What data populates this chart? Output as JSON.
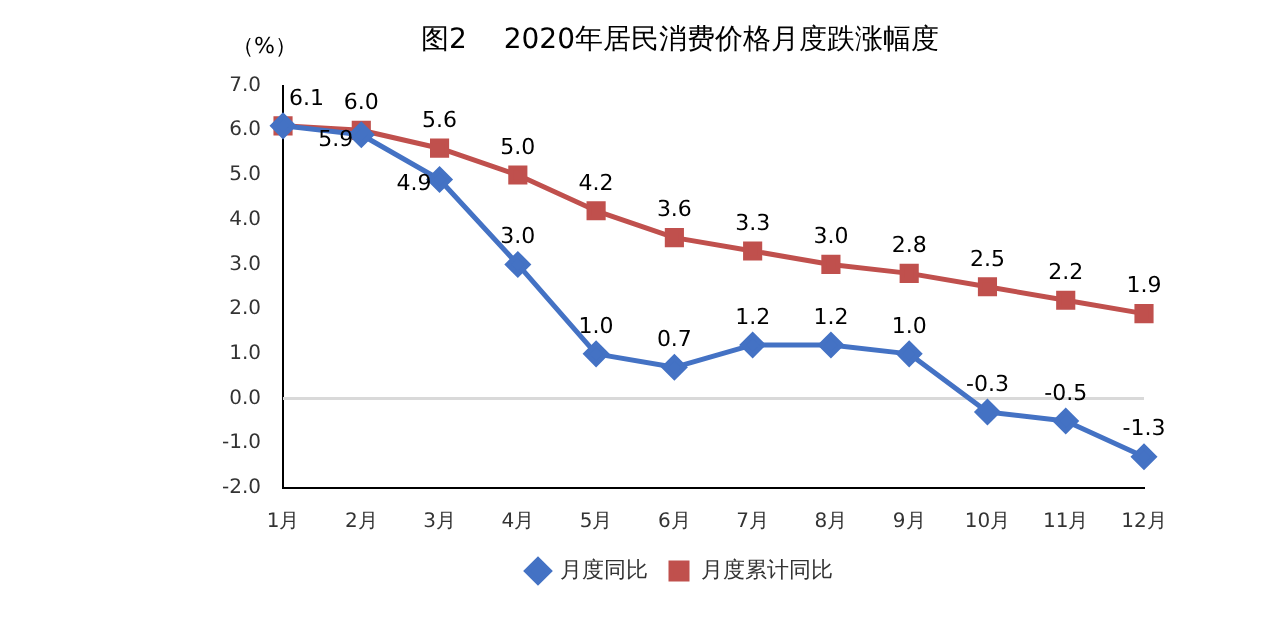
{
  "chart_data": {
    "type": "line",
    "title": "图2　 2020年居民消费价格月度跌涨幅度",
    "ylabel": "（%）",
    "categories": [
      "1月",
      "2月",
      "3月",
      "4月",
      "5月",
      "6月",
      "7月",
      "8月",
      "9月",
      "10月",
      "11月",
      "12月"
    ],
    "series": [
      {
        "name": "月度同比",
        "color": "#4472c4",
        "marker": "diamond",
        "values": [
          6.1,
          5.9,
          4.9,
          3.0,
          1.0,
          0.7,
          1.2,
          1.2,
          1.0,
          -0.3,
          -0.5,
          -1.3
        ],
        "value_labels": [
          null,
          "5.9",
          "4.9",
          "3.0",
          "1.0",
          "0.7",
          "1.2",
          "1.2",
          "1.0",
          "-0.3",
          "-0.5",
          "-1.3"
        ]
      },
      {
        "name": "月度累计同比",
        "color": "#c0504d",
        "marker": "square",
        "values": [
          6.1,
          6.0,
          5.6,
          5.0,
          4.2,
          3.6,
          3.3,
          3.0,
          2.8,
          2.5,
          2.2,
          1.9
        ],
        "value_labels": [
          "6.1",
          "6.0",
          "5.6",
          "5.0",
          "4.2",
          "3.6",
          "3.3",
          "3.0",
          "2.8",
          "2.5",
          "2.2",
          "1.9"
        ]
      }
    ],
    "ylim": [
      -2,
      7
    ],
    "yticks": [
      {
        "value": -2,
        "label": "-2.0"
      },
      {
        "value": -1,
        "label": "-1.0"
      },
      {
        "value": 0,
        "label": "0.0"
      },
      {
        "value": 1,
        "label": "1.0"
      },
      {
        "value": 2,
        "label": "2.0"
      },
      {
        "value": 3,
        "label": "3.0"
      },
      {
        "value": 4,
        "label": "4.0"
      },
      {
        "value": 5,
        "label": "5.0"
      },
      {
        "value": 6,
        "label": "6.0"
      },
      {
        "value": 7,
        "label": "7.0"
      }
    ],
    "ref_lines": [
      {
        "axis": "y",
        "value": 0,
        "color": "#d9d9d9"
      }
    ],
    "grid": false,
    "legend": "bottom",
    "line_style": "solid"
  }
}
